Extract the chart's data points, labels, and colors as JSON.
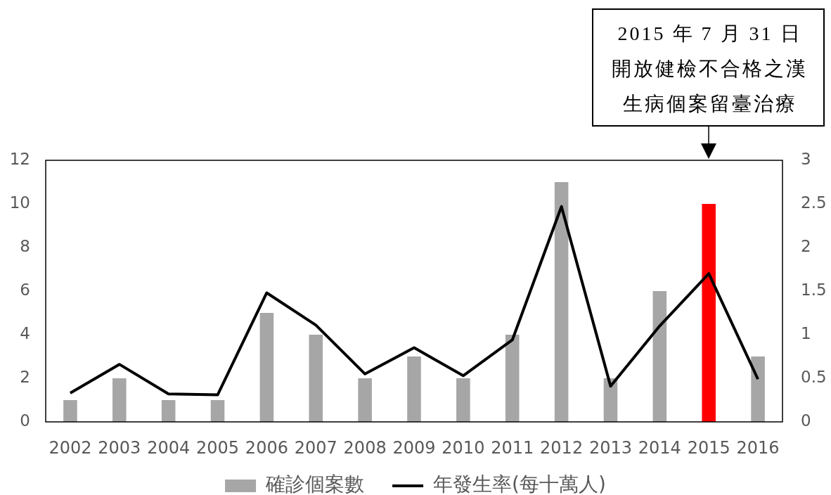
{
  "chart_data": {
    "type": "bar",
    "categories": [
      "2002",
      "2003",
      "2004",
      "2005",
      "2006",
      "2007",
      "2008",
      "2009",
      "2010",
      "2011",
      "2012",
      "2013",
      "2014",
      "2015",
      "2016"
    ],
    "series": [
      {
        "name": "確診個案數",
        "color": "#a6a6a6",
        "colors": [
          "#a6a6a6",
          "#a6a6a6",
          "#a6a6a6",
          "#a6a6a6",
          "#a6a6a6",
          "#a6a6a6",
          "#a6a6a6",
          "#a6a6a6",
          "#a6a6a6",
          "#a6a6a6",
          "#a6a6a6",
          "#a6a6a6",
          "#a6a6a6",
          "#ff0000",
          "#a6a6a6"
        ],
        "values": [
          1,
          2,
          1,
          1,
          5,
          4,
          2,
          3,
          2,
          4,
          11,
          2,
          6,
          10,
          3
        ]
      },
      {
        "name": "年發生率(每十萬人)",
        "type": "line",
        "axis": "y2",
        "color": "#000000",
        "values": [
          0.33,
          0.66,
          0.32,
          0.31,
          1.48,
          1.11,
          0.55,
          0.85,
          0.53,
          0.94,
          2.47,
          0.41,
          1.1,
          1.7,
          0.49
        ]
      }
    ],
    "ylim": [
      0,
      12
    ],
    "yticks": [
      0,
      2,
      4,
      6,
      8,
      10,
      12
    ],
    "y2lim": [
      0,
      3
    ],
    "y2ticks": [
      0,
      0.5,
      1,
      1.5,
      2,
      2.5,
      3
    ],
    "grid": false,
    "legend": "bottom",
    "marker": "none",
    "annotations": [
      "2015 年 7 月 31 日開放健檢不合格之漢生病個案留臺治療"
    ]
  }
}
